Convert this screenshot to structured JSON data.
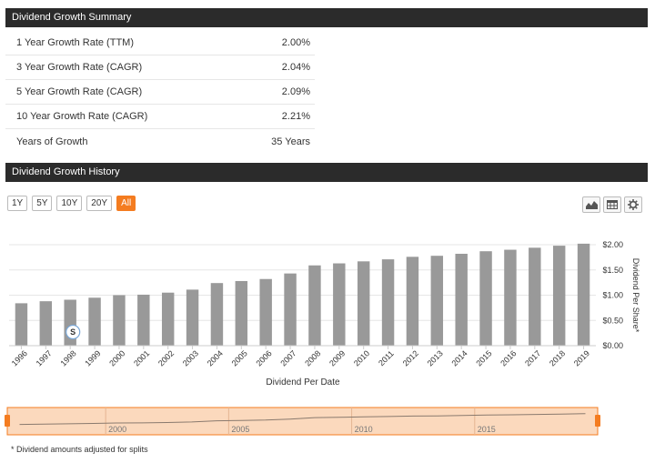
{
  "summary": {
    "title": "Dividend Growth Summary",
    "rows": [
      {
        "label": "1 Year Growth Rate (TTM)",
        "value": "2.00%"
      },
      {
        "label": "3 Year Growth Rate (CAGR)",
        "value": "2.04%"
      },
      {
        "label": "5 Year Growth Rate (CAGR)",
        "value": "2.09%"
      },
      {
        "label": "10 Year Growth Rate (CAGR)",
        "value": "2.21%"
      },
      {
        "label": "Years of Growth",
        "value": "35 Years"
      }
    ]
  },
  "history": {
    "title": "Dividend Growth History",
    "range_buttons": [
      "1Y",
      "5Y",
      "10Y",
      "20Y",
      "All"
    ],
    "active_range": "All",
    "tools": [
      "area-chart-icon",
      "table-icon",
      "gear-icon"
    ],
    "footnote": "* Dividend amounts adjusted for splits"
  },
  "colors": {
    "header_bg": "#2b2b2b",
    "bar": "#999999",
    "accent": "#f47c20",
    "navigator_fill": "#fbd9bd"
  },
  "chart_data": {
    "type": "bar",
    "categories": [
      "1996",
      "1997",
      "1998",
      "1999",
      "2000",
      "2001",
      "2002",
      "2003",
      "2004",
      "2005",
      "2006",
      "2007",
      "2008",
      "2009",
      "2010",
      "2011",
      "2012",
      "2013",
      "2014",
      "2015",
      "2016",
      "2017",
      "2018",
      "2019"
    ],
    "values": [
      0.84,
      0.88,
      0.91,
      0.95,
      1.0,
      1.01,
      1.05,
      1.11,
      1.24,
      1.28,
      1.32,
      1.43,
      1.59,
      1.63,
      1.67,
      1.71,
      1.76,
      1.78,
      1.82,
      1.87,
      1.9,
      1.94,
      1.98,
      2.02
    ],
    "xlabel": "Dividend Per Date",
    "ylabel": "Dividend Per Share*",
    "ylim": [
      0,
      2
    ],
    "yticks": [
      0,
      0.5,
      1,
      1.5,
      2
    ],
    "ytick_labels": [
      "$0.00",
      "$0.50",
      "$1.00",
      "$1.50",
      "$2.00"
    ],
    "y_axis_position": "right",
    "grid": true,
    "split_marker": {
      "category": "1998",
      "label": "S"
    },
    "navigator": {
      "tick_labels": [
        "2000",
        "2005",
        "2010",
        "2015"
      ]
    }
  }
}
